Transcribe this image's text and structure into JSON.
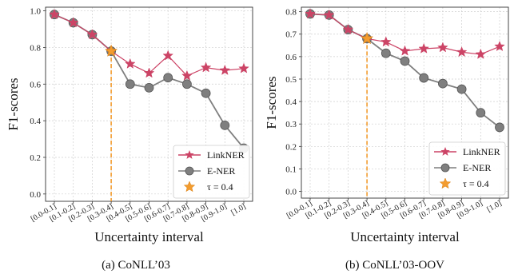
{
  "colors": {
    "linkner": "#cc4466",
    "ener": "#7f7f7f",
    "tau": "#f39c2f"
  },
  "chart_data": [
    {
      "type": "line",
      "caption": "(a)  CoNLL’03",
      "xlabel": "Uncertainty interval",
      "ylabel": "F1-scores",
      "categories": [
        "[0.0-0.1]",
        "[0.1-0.2]",
        "[0.2-0.3]",
        "[0.3-0.4]",
        "[0.4-0.5]",
        "[0.5-0.6]",
        "[0.6-0.7]",
        "[0.7-0.8]",
        "[0.8-0.9]",
        "[0.9-1.0]",
        "[1.0]"
      ],
      "ylim": [
        -0.04,
        1.02
      ],
      "yticks": [
        0.0,
        0.2,
        0.4,
        0.6,
        0.8,
        1.0
      ],
      "ytick_labels": [
        "0.0",
        "0.2",
        "0.4",
        "0.6",
        "0.8",
        "1.0"
      ],
      "grid": true,
      "legend_position": "bottom-right",
      "series": [
        {
          "name": "LinkNER",
          "marker": "star",
          "values": [
            0.98,
            0.935,
            0.87,
            0.78,
            0.71,
            0.66,
            0.755,
            0.645,
            0.69,
            0.675,
            0.685
          ]
        },
        {
          "name": "E-NER",
          "marker": "circle",
          "values": [
            0.98,
            0.935,
            0.87,
            0.78,
            0.6,
            0.58,
            0.635,
            0.6,
            0.55,
            0.375,
            0.25
          ]
        }
      ],
      "tau": {
        "label": "τ = 0.4",
        "category_index": 3,
        "value": 0.78
      }
    },
    {
      "type": "line",
      "caption": "(b)  CoNLL’03-OOV",
      "xlabel": "Uncertainty interval",
      "ylabel": "F1-scores",
      "categories": [
        "[0.0-0.1]",
        "[0.1-0.2]",
        "[0.2-0.3]",
        "[0.3-0.4]",
        "[0.4-0.5]",
        "[0.5-0.6]",
        "[0.6-0.7]",
        "[0.7-0.8]",
        "[0.8-0.9]",
        "[0.9-1.0]",
        "[1.0]"
      ],
      "ylim": [
        -0.03,
        0.82
      ],
      "yticks": [
        0.0,
        0.1,
        0.2,
        0.3,
        0.4,
        0.5,
        0.6,
        0.7,
        0.8
      ],
      "ytick_labels": [
        "0.0",
        "0.1",
        "0.2",
        "0.3",
        "0.4",
        "0.5",
        "0.6",
        "0.7",
        "0.8"
      ],
      "grid": true,
      "legend_position": "bottom-right",
      "series": [
        {
          "name": "LinkNER",
          "marker": "star",
          "values": [
            0.79,
            0.785,
            0.72,
            0.68,
            0.665,
            0.625,
            0.635,
            0.64,
            0.62,
            0.61,
            0.645
          ]
        },
        {
          "name": "E-NER",
          "marker": "circle",
          "values": [
            0.79,
            0.785,
            0.72,
            0.68,
            0.615,
            0.58,
            0.505,
            0.48,
            0.455,
            0.35,
            0.285
          ]
        }
      ],
      "tau": {
        "label": "τ = 0.4",
        "category_index": 3,
        "value": 0.68
      }
    }
  ]
}
